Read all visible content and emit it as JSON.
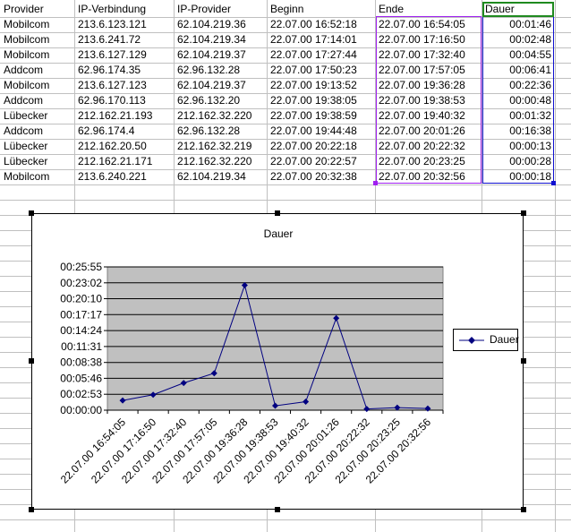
{
  "table": {
    "headers": [
      "Provider",
      "IP-Verbindung",
      "IP-Provider",
      "Beginn",
      "Ende",
      "Dauer"
    ],
    "rows": [
      [
        "Mobilcom",
        "213.6.123.121",
        "62.104.219.36",
        "22.07.00 16:52:18",
        "22.07.00 16:54:05",
        "00:01:46"
      ],
      [
        "Mobilcom",
        "213.6.241.72",
        "62.104.219.34",
        "22.07.00 17:14:01",
        "22.07.00 17:16:50",
        "00:02:48"
      ],
      [
        "Mobilcom",
        "213.6.127.129",
        "62.104.219.37",
        "22.07.00 17:27:44",
        "22.07.00 17:32:40",
        "00:04:55"
      ],
      [
        "Addcom",
        "62.96.174.35",
        "62.96.132.28",
        "22.07.00 17:50:23",
        "22.07.00 17:57:05",
        "00:06:41"
      ],
      [
        "Mobilcom",
        "213.6.127.123",
        "62.104.219.37",
        "22.07.00 19:13:52",
        "22.07.00 19:36:28",
        "00:22:36"
      ],
      [
        "Addcom",
        "62.96.170.113",
        "62.96.132.20",
        "22.07.00 19:38:05",
        "22.07.00 19:38:53",
        "00:00:48"
      ],
      [
        "Lübecker",
        "212.162.21.193",
        "212.162.32.220",
        "22.07.00 19:38:59",
        "22.07.00 19:40:32",
        "00:01:32"
      ],
      [
        "Addcom",
        "62.96.174.4",
        "62.96.132.28",
        "22.07.00 19:44:48",
        "22.07.00 20:01:26",
        "00:16:38"
      ],
      [
        "Lübecker",
        "212.162.20.50",
        "212.162.32.219",
        "22.07.00 20:22:18",
        "22.07.00 20:22:32",
        "00:00:13"
      ],
      [
        "Lübecker",
        "212.162.21.171",
        "212.162.32.220",
        "22.07.00 20:22:57",
        "22.07.00 20:23:25",
        "00:00:28"
      ],
      [
        "Mobilcom",
        "213.6.240.221",
        "62.104.219.34",
        "22.07.00 20:32:38",
        "22.07.00 20:32:56",
        "00:00:18"
      ]
    ]
  },
  "colors": {
    "grid": "#c0c0c0",
    "plot_area": "#c0c0c0",
    "series_line": "#000080",
    "selection_ende": "#a020f0",
    "selection_dauer": "#1010d0",
    "active_cell": "#1f8a1f"
  },
  "chart_data": {
    "type": "line",
    "title": "Dauer",
    "categories": [
      "22.07.00 16:54:05",
      "22.07.00 17:16:50",
      "22.07.00 17:32:40",
      "22.07.00 17:57:05",
      "22.07.00 19:36:28",
      "22.07.00 19:38:53",
      "22.07.00 19:40:32",
      "22.07.00 20:01:26",
      "22.07.00 20:22:32",
      "22.07.00 20:23:25",
      "22.07.00 20:32:56"
    ],
    "series": [
      {
        "name": "Dauer",
        "values_seconds": [
          106,
          168,
          295,
          401,
          1356,
          48,
          92,
          998,
          13,
          28,
          18
        ]
      }
    ],
    "y_ticks": [
      "00:00:00",
      "00:02:53",
      "00:05:46",
      "00:08:38",
      "00:11:31",
      "00:14:24",
      "00:17:17",
      "00:20:10",
      "00:23:02",
      "00:25:55"
    ],
    "y_tick_seconds": [
      0,
      173,
      346,
      518,
      691,
      864,
      1037,
      1210,
      1382,
      1555
    ],
    "ylim_seconds": [
      0,
      1555
    ],
    "grid": true,
    "legend": "right",
    "legend_entry": "Dauer"
  }
}
